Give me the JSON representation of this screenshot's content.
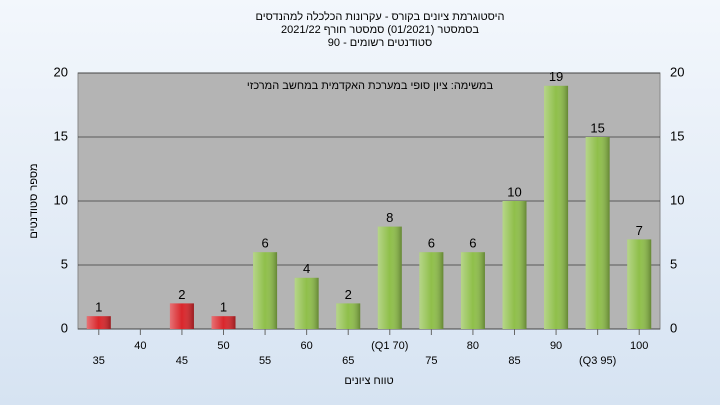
{
  "chart_data": {
    "type": "bar",
    "title": [
      "היסטוגרמת ציונים בקורס - עקרונות הכלכלה למהנדסים",
      "בסמסטר  (01/2021)  סמסטר חורף 2021/22",
      "סטודנטים רשומים - 90"
    ],
    "annotation": "במשימה: ציון סופי במערכת האקדמית במחשב המרכזי",
    "x_label": "טווח ציונים",
    "y_label": "מספר סטודנטים",
    "categories": [
      "35",
      "40",
      "45",
      "50",
      "55",
      "60",
      "65",
      "(Q1 70)",
      "75",
      "80",
      "85",
      "90",
      "(Q3 95)",
      "100"
    ],
    "values": [
      1,
      0,
      2,
      1,
      6,
      4,
      2,
      8,
      6,
      6,
      10,
      19,
      15,
      7
    ],
    "colors": [
      "#d9262b",
      "#d9262b",
      "#d9262b",
      "#d9262b",
      "#8fbf4a",
      "#8fbf4a",
      "#8fbf4a",
      "#8fbf4a",
      "#8fbf4a",
      "#8fbf4a",
      "#8fbf4a",
      "#8fbf4a",
      "#8fbf4a",
      "#8fbf4a"
    ],
    "ylim": [
      0,
      20
    ],
    "yticks": [
      0,
      5,
      10,
      15,
      20
    ],
    "grid": true
  }
}
